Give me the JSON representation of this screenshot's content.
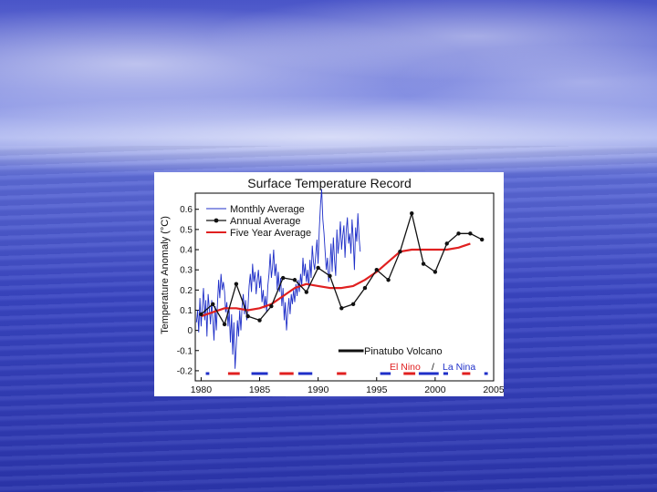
{
  "slide": {
    "background": "blue ocean and sky",
    "colors": {
      "sky": "#5d6bd6",
      "sea": "#2c36ad"
    }
  },
  "chart_data": {
    "type": "line",
    "title": "Surface Temperature Record",
    "xlabel": "",
    "ylabel": "Temperature Anomaly (°C)",
    "xlim": [
      1979.5,
      2005
    ],
    "ylim": [
      -0.25,
      0.68
    ],
    "xticks": [
      1980,
      1985,
      1990,
      1995,
      2000,
      2005
    ],
    "yticks": [
      -0.2,
      -0.1,
      0,
      0.1,
      0.2,
      0.3,
      0.4,
      0.5,
      0.6
    ],
    "legend": [
      {
        "label": "Monthly Average",
        "color": "#1f2fc8",
        "style": "thin-line"
      },
      {
        "label": "Annual Average",
        "color": "#111111",
        "style": "line-dots"
      },
      {
        "label": "Five Year Average",
        "color": "#e02020",
        "style": "thick-line"
      }
    ],
    "annotations": {
      "pinatubo": {
        "label": "Pinatubo Volcano",
        "color": "#111111",
        "x": [
          1991.5,
          1993.5
        ]
      },
      "el_nino_label": "El Nino",
      "separator": "/",
      "la_nina_label": "La Nina"
    },
    "series": [
      {
        "name": "Annual Average",
        "x": [
          1980,
          1981,
          1982,
          1983,
          1984,
          1985,
          1986,
          1987,
          1988,
          1989,
          1990,
          1991,
          1992,
          1993,
          1994,
          1995,
          1996,
          1997,
          1998,
          1999,
          2000,
          2001,
          2002,
          2003,
          2004
        ],
        "values": [
          0.08,
          0.13,
          0.03,
          0.23,
          0.07,
          0.05,
          0.12,
          0.26,
          0.25,
          0.19,
          0.31,
          0.27,
          0.11,
          0.13,
          0.21,
          0.3,
          0.25,
          0.39,
          0.58,
          0.33,
          0.29,
          0.43,
          0.48,
          0.48,
          0.45
        ]
      },
      {
        "name": "Five Year Average",
        "x": [
          1980,
          1981,
          1982,
          1983,
          1984,
          1985,
          1986,
          1987,
          1988,
          1989,
          1990,
          1991,
          1992,
          1993,
          1994,
          1995,
          1996,
          1997,
          1998,
          1999,
          2000,
          2001,
          2002,
          2003
        ],
        "values": [
          0.07,
          0.09,
          0.11,
          0.11,
          0.1,
          0.11,
          0.13,
          0.17,
          0.21,
          0.23,
          0.22,
          0.21,
          0.21,
          0.22,
          0.25,
          0.29,
          0.34,
          0.39,
          0.4,
          0.4,
          0.4,
          0.4,
          0.41,
          0.43
        ]
      },
      {
        "name": "Monthly Average",
        "x_start": 1979.6,
        "x_step": 0.1,
        "values": [
          0.04,
          0.1,
          -0.01,
          0.16,
          0.02,
          0.12,
          0.21,
          0.05,
          0.15,
          -0.03,
          0.18,
          0.11,
          0.03,
          0.15,
          0.06,
          -0.05,
          0.12,
          0.0,
          0.14,
          0.25,
          0.16,
          0.28,
          0.2,
          0.24,
          0.19,
          0.09,
          0.14,
          0.02,
          0.1,
          -0.06,
          0.08,
          -0.12,
          0.04,
          -0.19,
          -0.08,
          0.05,
          -0.03,
          0.1,
          0.0,
          0.12,
          0.18,
          0.08,
          0.15,
          0.05,
          0.11,
          0.22,
          0.28,
          0.19,
          0.33,
          0.24,
          0.29,
          0.18,
          0.25,
          0.3,
          0.21,
          0.27,
          0.14,
          0.2,
          0.11,
          0.17,
          0.09,
          0.22,
          0.28,
          0.38,
          0.26,
          0.31,
          0.4,
          0.27,
          0.33,
          0.2,
          0.29,
          0.19,
          0.26,
          0.12,
          0.21,
          0.05,
          0.14,
          0.0,
          0.09,
          0.16,
          0.08,
          0.18,
          0.13,
          0.2,
          0.14,
          0.23,
          0.17,
          0.25,
          0.19,
          0.28,
          0.22,
          0.36,
          0.27,
          0.33,
          0.24,
          0.3,
          0.21,
          0.35,
          0.26,
          0.42,
          0.34,
          0.3,
          0.38,
          0.45,
          0.33,
          0.5,
          0.62,
          0.7,
          0.55,
          0.48,
          0.39,
          0.3,
          0.36,
          0.24,
          0.31,
          0.43,
          0.29,
          0.46,
          0.35,
          0.27,
          0.5,
          0.38,
          0.44,
          0.54,
          0.4,
          0.47,
          0.52,
          0.36,
          0.49,
          0.56,
          0.43,
          0.48,
          0.38,
          0.55,
          0.45,
          0.3,
          0.51,
          0.44,
          0.58,
          0.46,
          0.39
        ]
      }
    ],
    "enso_bands": [
      {
        "type": "El Nino",
        "color": "#e02020",
        "x": [
          [
            1982.3,
            1983.3
          ],
          [
            1986.7,
            1987.9
          ],
          [
            1991.6,
            1992.4
          ],
          [
            1997.3,
            1998.3
          ],
          [
            2002.3,
            2003.0
          ]
        ]
      },
      {
        "type": "La Nina",
        "color": "#1f2fc8",
        "x": [
          [
            1980.4,
            1980.7
          ],
          [
            1984.3,
            1985.7
          ],
          [
            1988.3,
            1989.5
          ],
          [
            1995.3,
            1996.2
          ],
          [
            1998.6,
            2000.3
          ],
          [
            2000.7,
            2001.1
          ],
          [
            2004.2,
            2004.5
          ]
        ]
      }
    ]
  }
}
